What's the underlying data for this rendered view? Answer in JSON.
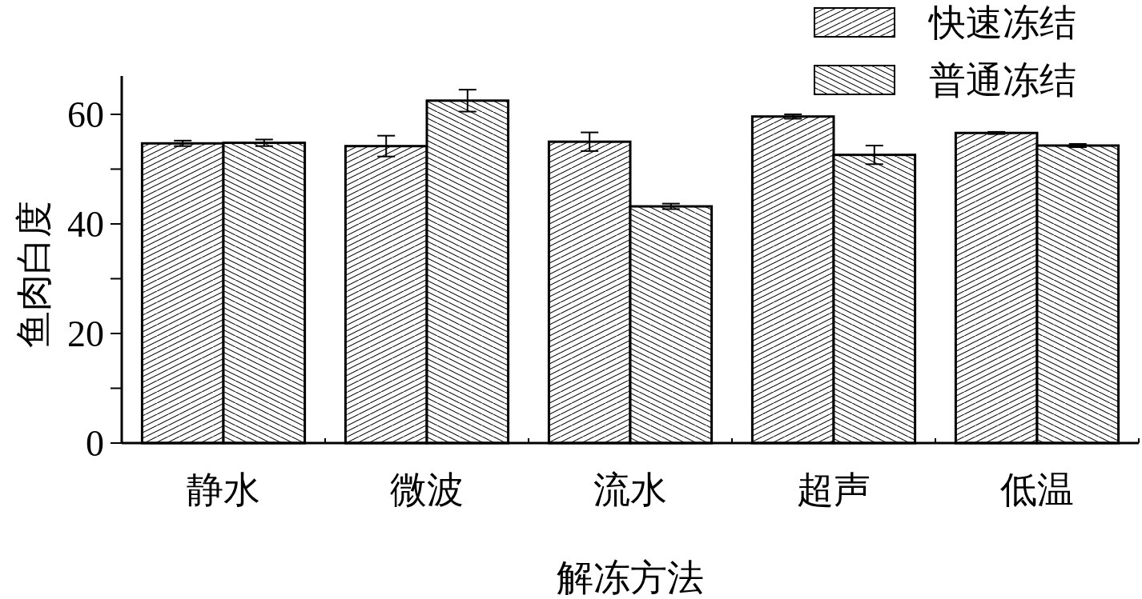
{
  "chart_data": {
    "type": "bar",
    "xlabel": "解冻方法",
    "ylabel": "鱼肉白度",
    "categories": [
      "静水",
      "微波",
      "流水",
      "超声",
      "低温"
    ],
    "series": [
      {
        "name": "快速冻结",
        "color": "#000000",
        "values": [
          54.7,
          54.2,
          55.0,
          59.6,
          56.6
        ],
        "errors": [
          0.5,
          1.9,
          1.7,
          0.4,
          0.2
        ]
      },
      {
        "name": "普通冻结",
        "color": "#000000",
        "values": [
          54.8,
          62.5,
          43.2,
          52.6,
          54.3
        ],
        "errors": [
          0.6,
          2.0,
          0.5,
          1.7,
          0.3
        ]
      }
    ],
    "ylim": [
      0,
      67
    ],
    "yticks": [
      0,
      {
        "value": 10,
        "label": null
      },
      20,
      {
        "value": 30,
        "label": null
      },
      40,
      {
        "value": 50,
        "label": null
      },
      60
    ],
    "grid": false,
    "legend": "top right"
  }
}
